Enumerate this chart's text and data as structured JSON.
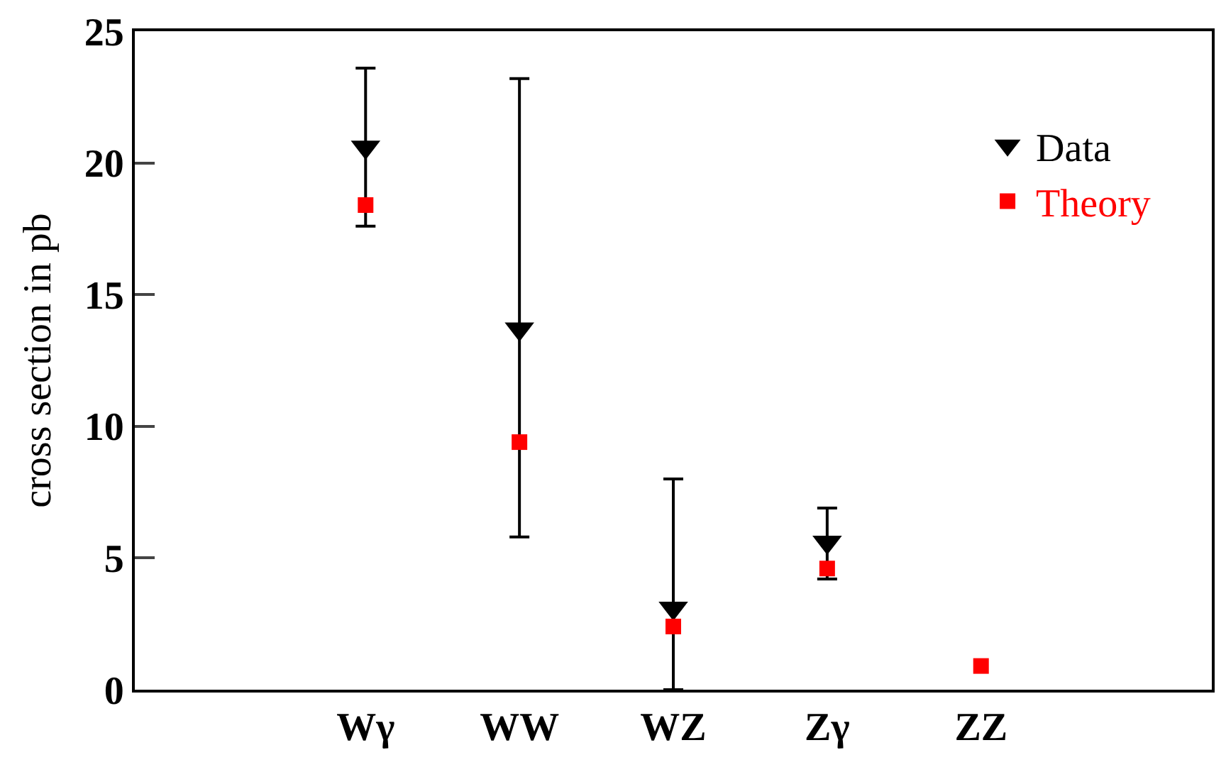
{
  "chart_data": {
    "type": "scatter",
    "ylabel": "cross section in pb",
    "categories": [
      null,
      "Wγ",
      "WW",
      "WZ",
      "Zγ",
      "ZZ",
      null
    ],
    "series": [
      {
        "name": "Data",
        "marker": "triangle",
        "color": "#000000",
        "values": [
          null,
          20.6,
          13.7,
          3.1,
          5.6,
          null,
          null
        ],
        "errors": [
          null,
          [
            17.6,
            23.6
          ],
          [
            5.8,
            23.2
          ],
          [
            0,
            8.0
          ],
          [
            4.2,
            6.9
          ],
          null,
          null
        ]
      },
      {
        "name": "Theory",
        "marker": "square",
        "color": "#ff0000",
        "values": [
          null,
          18.4,
          9.4,
          2.4,
          4.6,
          0.9,
          null
        ]
      }
    ],
    "ylim": [
      0,
      25
    ],
    "yticks": [
      0,
      5,
      10,
      15,
      20,
      25
    ],
    "legend": "top right"
  }
}
